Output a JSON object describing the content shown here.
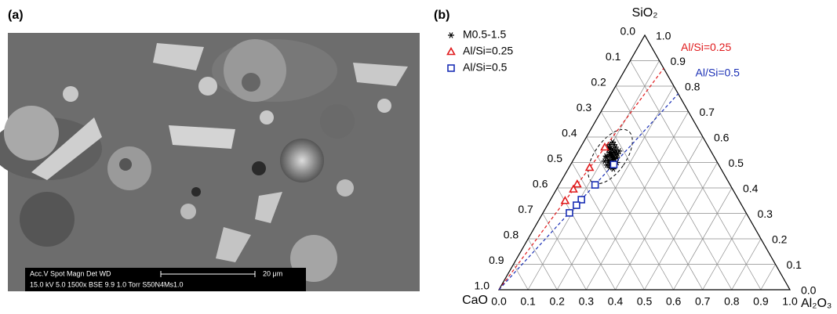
{
  "panel_a": {
    "label": "(a)",
    "info_bar": {
      "row1": "Acc.V  Spot Magn    Det  WD",
      "scale": "20 μm",
      "row2": "15.0 kV 5.0    1500x    BSE 9.9     1.0 Torr S50N4Ms1.0"
    }
  },
  "chart_data": {
    "type": "ternary",
    "label": "(b)",
    "axes": {
      "top": "SiO₂",
      "left": "CaO",
      "right": "Al₂O₃"
    },
    "al2o3_ticks": [
      {
        "value": 0,
        "label": "0.0"
      },
      {
        "value": 0.1,
        "label": "0.1"
      },
      {
        "value": 0.2,
        "label": "0.2"
      },
      {
        "value": 0.3,
        "label": "0.3"
      },
      {
        "value": 0.4,
        "label": "0.4"
      },
      {
        "value": 0.5,
        "label": "0.5"
      },
      {
        "value": 0.6,
        "label": "0.6"
      },
      {
        "value": 0.7,
        "label": "0.7"
      },
      {
        "value": 0.8,
        "label": "0.8"
      },
      {
        "value": 0.9,
        "label": "0.9"
      },
      {
        "value": 1,
        "label": "1.0"
      }
    ],
    "cao_ticks": [
      {
        "value": 0,
        "label": "0.0"
      },
      {
        "value": 0.1,
        "label": "0.1"
      },
      {
        "value": 0.2,
        "label": "0.2"
      },
      {
        "value": 0.3,
        "label": "0.3"
      },
      {
        "value": 0.4,
        "label": "0.4"
      },
      {
        "value": 0.5,
        "label": "0.5"
      },
      {
        "value": 0.6,
        "label": "0.6"
      },
      {
        "value": 0.7,
        "label": "0.7"
      },
      {
        "value": 0.8,
        "label": "0.8"
      },
      {
        "value": 0.9,
        "label": "0.9"
      },
      {
        "value": 1,
        "label": "1.0"
      }
    ],
    "sio2_ticks": [
      {
        "value": 0,
        "label": "0.0"
      },
      {
        "value": 0.1,
        "label": "0.1"
      },
      {
        "value": 0.2,
        "label": "0.2"
      },
      {
        "value": 0.3,
        "label": "0.3"
      },
      {
        "value": 0.4,
        "label": "0.4"
      },
      {
        "value": 0.5,
        "label": "0.5"
      },
      {
        "value": 0.6,
        "label": "0.6"
      },
      {
        "value": 0.7,
        "label": "0.7"
      },
      {
        "value": 0.8,
        "label": "0.8"
      },
      {
        "value": 0.9,
        "label": "0.9"
      },
      {
        "value": 1,
        "label": "1.0"
      }
    ],
    "grid": true,
    "legend": "top-left",
    "series": [
      {
        "name": "M0.5-1.5",
        "color": "#000000",
        "marker": "asterisk",
        "sio2": [
          0.58,
          0.57,
          0.56,
          0.555,
          0.55,
          0.545,
          0.54,
          0.54,
          0.535,
          0.53,
          0.53,
          0.525,
          0.52,
          0.52,
          0.515,
          0.51,
          0.51,
          0.505,
          0.5,
          0.5,
          0.495,
          0.49,
          0.485,
          0.48,
          0.56,
          0.57,
          0.55,
          0.535,
          0.52,
          0.505,
          0.49,
          0.475,
          0.5,
          0.545,
          0.525
        ],
        "al2o3": [
          0.1,
          0.11,
          0.12,
          0.105,
          0.115,
          0.13,
          0.11,
          0.125,
          0.12,
          0.115,
          0.135,
          0.125,
          0.11,
          0.13,
          0.14,
          0.12,
          0.135,
          0.125,
          0.13,
          0.145,
          0.14,
          0.135,
          0.15,
          0.14,
          0.095,
          0.095,
          0.1,
          0.14,
          0.145,
          0.11,
          0.125,
          0.155,
          0.155,
          0.14,
          0.105
        ]
      },
      {
        "name": "Al/Si=0.25",
        "color": "#e0191b",
        "marker": "triangle",
        "sio2": [
          0.56,
          0.48,
          0.415,
          0.395,
          0.35
        ],
        "al2o3": [
          0.083,
          0.071,
          0.061,
          0.058,
          0.052
        ],
        "line": {
          "label": "Al/Si=0.25",
          "sio2": [
            0,
            0.87
          ],
          "al2o3": [
            0,
            0.13
          ]
        }
      },
      {
        "name": "Al/Si=0.5",
        "color": "#1a2fb5",
        "marker": "square",
        "sio2": [
          0.492,
          0.412,
          0.354,
          0.332,
          0.302
        ],
        "al2o3": [
          0.148,
          0.124,
          0.106,
          0.1,
          0.091
        ],
        "line": {
          "label": "Al/Si=0.5",
          "sio2": [
            0,
            0.77
          ],
          "al2o3": [
            0,
            0.23
          ]
        }
      }
    ]
  }
}
